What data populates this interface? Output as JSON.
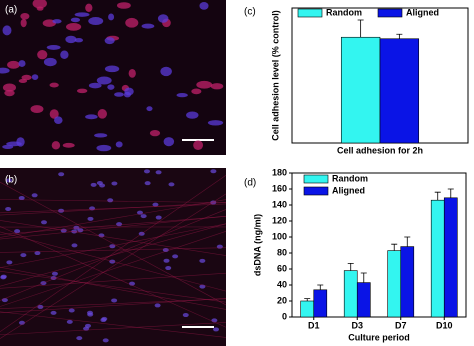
{
  "panel_labels": [
    "(a)",
    "(b)",
    "(c)",
    "(d)"
  ],
  "chart_data": [
    {
      "type": "bar",
      "ylabel": "Cell adhesion level (% control)",
      "xlabel": "Cell adhesion for 2h",
      "categories": [
        null
      ],
      "ylim": [
        0,
        180
      ],
      "legend": "top",
      "series": [
        {
          "name": "Random",
          "color": "#33f5f0",
          "values": [
            141
          ],
          "errors": [
            23
          ]
        },
        {
          "name": "Aligned",
          "color": "#0a14e6",
          "values": [
            139
          ],
          "errors": [
            6
          ]
        }
      ]
    },
    {
      "type": "bar",
      "ylabel": "dsDNA (ng/ml)",
      "xlabel": "Culture period",
      "categories": [
        "D1",
        "D3",
        "D7",
        "D10"
      ],
      "ylim": [
        0,
        180
      ],
      "yticks": [
        0,
        20,
        40,
        60,
        80,
        100,
        120,
        140,
        160,
        180
      ],
      "legend": "upper left",
      "series": [
        {
          "name": "Random",
          "color": "#33f5f0",
          "values": [
            20,
            58,
            83,
            146
          ],
          "errors": [
            3,
            9,
            8,
            10
          ]
        },
        {
          "name": "Aligned",
          "color": "#0a14e6",
          "values": [
            34,
            43,
            88,
            149
          ],
          "errors": [
            6,
            12,
            12,
            11
          ]
        }
      ]
    }
  ]
}
